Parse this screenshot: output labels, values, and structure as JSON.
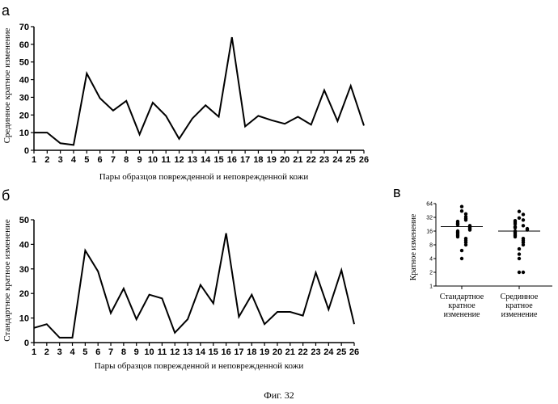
{
  "figure_caption": "Фиг. 32",
  "chart_data": [
    {
      "panel": "а",
      "type": "line",
      "x": [
        1,
        2,
        3,
        4,
        5,
        6,
        7,
        8,
        9,
        10,
        11,
        12,
        13,
        14,
        15,
        16,
        17,
        18,
        19,
        20,
        21,
        22,
        23,
        24,
        25,
        26
      ],
      "series": [
        {
          "values": [
            10,
            10,
            4,
            3,
            43.5,
            29.5,
            22.5,
            28,
            9,
            27,
            19.5,
            6.5,
            18,
            25.5,
            19,
            64,
            13.5,
            19.5,
            17,
            15,
            19,
            14.5,
            34,
            16.5,
            36.5,
            14
          ]
        }
      ],
      "xlabel": "Пары образцов поврежденной и неповрежденной кожи",
      "ylabel": "Срединное кратное изменение",
      "ylim": [
        0,
        70
      ],
      "yticks": [
        0,
        10,
        20,
        30,
        40,
        50,
        60,
        70
      ],
      "grid": false
    },
    {
      "panel": "б",
      "type": "line",
      "x": [
        1,
        2,
        3,
        4,
        5,
        6,
        7,
        8,
        9,
        10,
        11,
        12,
        13,
        14,
        15,
        16,
        17,
        18,
        19,
        20,
        21,
        22,
        23,
        24,
        25,
        26
      ],
      "series": [
        {
          "values": [
            6,
            7.5,
            2,
            2,
            37.5,
            29,
            12,
            22,
            9.5,
            19.5,
            18,
            4,
            9.5,
            23.5,
            16,
            44.5,
            10.5,
            19.5,
            7.5,
            12.5,
            12.5,
            11,
            28.5,
            13.5,
            29.5,
            7.5
          ]
        }
      ],
      "xlabel": "Пары образцов поврежденной и неповрежденной кожи",
      "ylabel": "Стандартное кратное изменение",
      "ylim": [
        0,
        50
      ],
      "yticks": [
        0,
        10,
        20,
        30,
        40,
        50
      ],
      "grid": false
    },
    {
      "panel": "в",
      "type": "scatter",
      "scale": "log2",
      "ylabel": "Кратное изменение",
      "ylim": [
        1,
        64
      ],
      "yticks": [
        1,
        2,
        4,
        8,
        16,
        32,
        64
      ],
      "categories": [
        "Стандартное кратное изменение",
        "Срединное кратное изменение"
      ],
      "category_lines": [
        [
          "Стандартное",
          "кратное",
          "изменение"
        ],
        [
          "Срединное",
          "кратное",
          "изменение"
        ]
      ],
      "groups": [
        {
          "values": [
            55,
            44,
            38,
            33,
            30,
            28,
            26,
            24,
            23,
            22,
            21,
            20,
            19,
            18,
            17,
            16,
            15,
            14,
            13,
            12,
            11,
            10,
            9,
            8,
            6,
            4
          ],
          "median_line": 20
        },
        {
          "values": [
            43,
            37,
            31,
            28,
            27,
            25,
            23,
            21,
            20,
            19,
            18,
            17,
            16,
            15,
            14,
            13,
            12,
            11,
            10,
            9,
            8,
            6.5,
            5,
            4,
            2,
            2
          ],
          "median_line": 16
        }
      ],
      "grid": false
    }
  ]
}
